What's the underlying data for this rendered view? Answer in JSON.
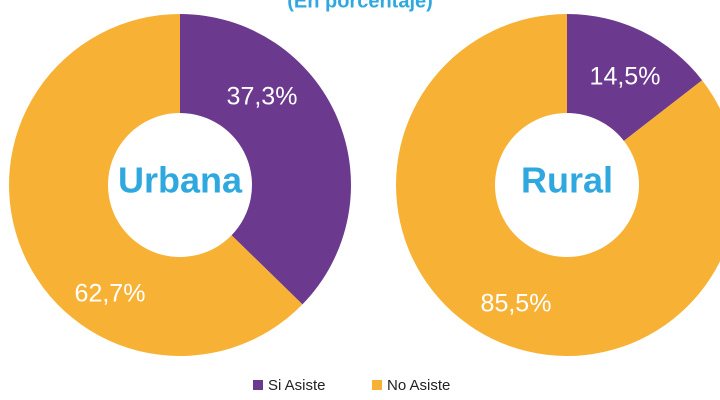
{
  "title": "(En porcentaje)",
  "chart_data": [
    {
      "type": "donut",
      "center_label": "Urbana",
      "categories": [
        "Si Asiste",
        "No Asiste"
      ],
      "values": [
        37.3,
        62.7
      ],
      "value_labels": [
        "37,3%",
        "62,7%"
      ],
      "colors": [
        "#6b3a8e",
        "#f7b236"
      ],
      "legend": "bottom"
    },
    {
      "type": "donut",
      "center_label": "Rural",
      "categories": [
        "Si Asiste",
        "No Asiste"
      ],
      "values": [
        14.5,
        85.5
      ],
      "value_labels": [
        "14,5%",
        "85,5%"
      ],
      "colors": [
        "#6b3a8e",
        "#f7b236"
      ],
      "legend": "bottom"
    }
  ]
}
